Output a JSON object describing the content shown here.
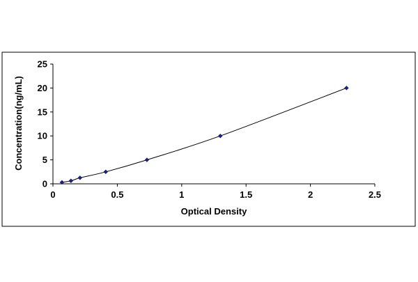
{
  "chart_data": {
    "type": "scatter",
    "title": "",
    "xlabel": "Optical Density",
    "ylabel": "Concentration(ng/mL)",
    "xlim": [
      0,
      2.5
    ],
    "ylim": [
      0,
      25
    ],
    "x_ticks": [
      "0",
      "0.5",
      "1",
      "1.5",
      "2",
      "2.5"
    ],
    "y_ticks": [
      "0",
      "5",
      "10",
      "15",
      "20",
      "25"
    ],
    "grid": false,
    "legend": "none",
    "trendline": "smooth curve through points",
    "series": [
      {
        "marker": "diamond",
        "color": "#1f1f7a",
        "x": [
          0.07,
          0.14,
          0.21,
          0.41,
          0.73,
          1.3,
          2.28
        ],
        "y": [
          0.31,
          0.625,
          1.25,
          2.5,
          5,
          10,
          20
        ]
      }
    ]
  }
}
